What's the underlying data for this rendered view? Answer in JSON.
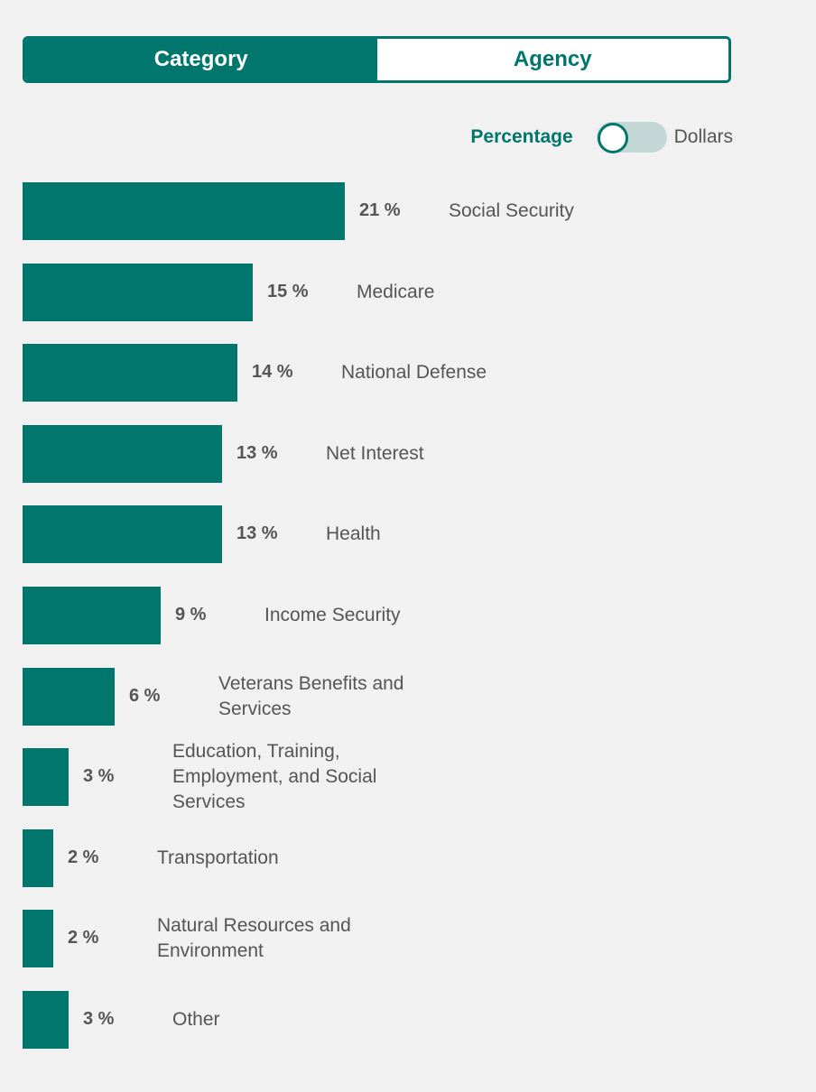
{
  "tabs": {
    "category_label": "Category",
    "agency_label": "Agency"
  },
  "toggle": {
    "left_label": "Percentage",
    "right_label": "Dollars",
    "selected": "Percentage"
  },
  "colors": {
    "accent": "#00766c",
    "switch_track": "#c3d8d6",
    "text": "#555555",
    "background": "#f1f1f1"
  },
  "chart_data": {
    "type": "bar",
    "orientation": "horizontal",
    "categories": [
      "Social Security",
      "Medicare",
      "National Defense",
      "Net Interest",
      "Health",
      "Income Security",
      "Veterans Benefits and Services",
      "Education, Training, Employment, and Social Services",
      "Transportation",
      "Natural Resources and Environment",
      "Other"
    ],
    "values": [
      21,
      15,
      14,
      13,
      13,
      9,
      6,
      3,
      2,
      2,
      3
    ],
    "value_labels": [
      "21 %",
      "15 %",
      "14 %",
      "13 %",
      "13 %",
      "9 %",
      "6 %",
      "3 %",
      "2 %",
      "2 %",
      "3 %"
    ],
    "unit": "%",
    "title": "",
    "xlabel": "",
    "ylabel": "",
    "grid": false,
    "legend": "none"
  }
}
